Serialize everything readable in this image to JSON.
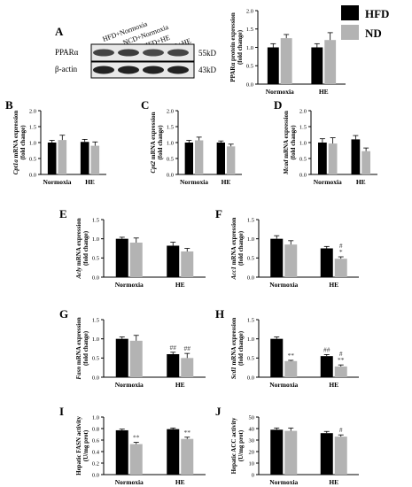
{
  "legend": {
    "items": [
      {
        "label": "HFD",
        "color": "#000000"
      },
      {
        "label": "ND",
        "color": "#b3b3b3"
      }
    ]
  },
  "blot": {
    "panel": "A",
    "lanes": [
      "HFD+Normoxia",
      "NCD+Normoxia",
      "HFD+HE",
      "NCD+HE"
    ],
    "rows": [
      {
        "label": "PPARα",
        "size": "55kD"
      },
      {
        "label": "β-actin",
        "size": "43kD"
      }
    ]
  },
  "chart_data": [
    {
      "id": "A",
      "type": "bar",
      "panel": "",
      "ylabel": "PPARα protein expression",
      "yunit": "(fold change)",
      "categories": [
        "Normoxia",
        "HE"
      ],
      "ylim": [
        0,
        2
      ],
      "yticks": [
        0,
        0.5,
        1,
        1.5,
        2
      ],
      "tick_decimals": 1,
      "series": [
        {
          "name": "HFD",
          "values": [
            1.0,
            1.0
          ],
          "err": [
            0.1,
            0.1
          ]
        },
        {
          "name": "ND",
          "values": [
            1.25,
            1.2
          ],
          "err": [
            0.1,
            0.2
          ]
        }
      ],
      "annotations": []
    },
    {
      "id": "B",
      "type": "bar",
      "panel": "B",
      "ylabel": "mRNA expression",
      "gene": "Cpt1a",
      "yunit": "(fold change)",
      "categories": [
        "Normoxia",
        "HE"
      ],
      "ylim": [
        0,
        2
      ],
      "yticks": [
        0,
        0.5,
        1,
        1.5,
        2
      ],
      "tick_decimals": 1,
      "series": [
        {
          "name": "HFD",
          "values": [
            1.0,
            1.02
          ],
          "err": [
            0.07,
            0.08
          ]
        },
        {
          "name": "ND",
          "values": [
            1.08,
            0.9
          ],
          "err": [
            0.15,
            0.12
          ]
        }
      ],
      "annotations": []
    },
    {
      "id": "C",
      "type": "bar",
      "panel": "C",
      "ylabel": "mRNA expression",
      "gene": "Cpt2",
      "yunit": "(fold change)",
      "categories": [
        "Normoxia",
        "HE"
      ],
      "ylim": [
        0,
        2
      ],
      "yticks": [
        0,
        0.5,
        1,
        1.5,
        2
      ],
      "tick_decimals": 1,
      "series": [
        {
          "name": "HFD",
          "values": [
            1.0,
            1.0
          ],
          "err": [
            0.07,
            0.05
          ]
        },
        {
          "name": "ND",
          "values": [
            1.07,
            0.88
          ],
          "err": [
            0.1,
            0.07
          ]
        }
      ],
      "annotations": []
    },
    {
      "id": "D",
      "type": "bar",
      "panel": "D",
      "ylabel": "mRNA expression",
      "gene": "Mcad",
      "yunit": "(fold change)",
      "categories": [
        "Normoxia",
        "HE"
      ],
      "ylim": [
        0,
        2
      ],
      "yticks": [
        0,
        0.5,
        1,
        1.5,
        2
      ],
      "tick_decimals": 1,
      "series": [
        {
          "name": "HFD",
          "values": [
            1.0,
            1.1
          ],
          "err": [
            0.12,
            0.12
          ]
        },
        {
          "name": "ND",
          "values": [
            0.97,
            0.73
          ],
          "err": [
            0.18,
            0.1
          ]
        }
      ],
      "annotations": []
    },
    {
      "id": "E",
      "type": "bar",
      "panel": "E",
      "ylabel": "mRNA expression",
      "gene": "Acly",
      "yunit": "(fold change)",
      "categories": [
        "Normoxia",
        "HE"
      ],
      "ylim": [
        0,
        1.5
      ],
      "yticks": [
        0,
        0.5,
        1,
        1.5
      ],
      "tick_decimals": 1,
      "series": [
        {
          "name": "HFD",
          "values": [
            1.0,
            0.82
          ],
          "err": [
            0.04,
            0.09
          ]
        },
        {
          "name": "ND",
          "values": [
            0.9,
            0.67
          ],
          "err": [
            0.12,
            0.08
          ]
        }
      ],
      "annotations": []
    },
    {
      "id": "F",
      "type": "bar",
      "panel": "F",
      "ylabel": "mRNA expression",
      "gene": "Acc1",
      "yunit": "(fold change)",
      "categories": [
        "Normoxia",
        "HE"
      ],
      "ylim": [
        0,
        1.5
      ],
      "yticks": [
        0,
        0.5,
        1,
        1.5
      ],
      "tick_decimals": 1,
      "series": [
        {
          "name": "HFD",
          "values": [
            1.0,
            0.75
          ],
          "err": [
            0.08,
            0.05
          ]
        },
        {
          "name": "ND",
          "values": [
            0.85,
            0.48
          ],
          "err": [
            0.1,
            0.05
          ]
        }
      ],
      "annotations": [
        {
          "series": 1,
          "index": 1,
          "lines": [
            "#",
            "*"
          ]
        }
      ]
    },
    {
      "id": "G",
      "type": "bar",
      "panel": "G",
      "ylabel": "mRNA expression",
      "gene": "Fasn",
      "yunit": "(fold change)",
      "categories": [
        "Normoxia",
        "HE"
      ],
      "ylim": [
        0,
        1.5
      ],
      "yticks": [
        0,
        0.5,
        1,
        1.5
      ],
      "tick_decimals": 1,
      "series": [
        {
          "name": "HFD",
          "values": [
            1.0,
            0.6
          ],
          "err": [
            0.05,
            0.05
          ]
        },
        {
          "name": "ND",
          "values": [
            0.95,
            0.5
          ],
          "err": [
            0.14,
            0.12
          ]
        }
      ],
      "annotations": [
        {
          "series": 0,
          "index": 1,
          "lines": [
            "##"
          ]
        },
        {
          "series": 1,
          "index": 1,
          "lines": [
            "##"
          ]
        }
      ]
    },
    {
      "id": "H",
      "type": "bar",
      "panel": "H",
      "ylabel": "mRNA expression",
      "gene": "Scd1",
      "yunit": "(fold change)",
      "categories": [
        "Normoxia",
        "HE"
      ],
      "ylim": [
        0,
        1.5
      ],
      "yticks": [
        0,
        0.5,
        1,
        1.5
      ],
      "tick_decimals": 1,
      "series": [
        {
          "name": "HFD",
          "values": [
            1.0,
            0.55
          ],
          "err": [
            0.05,
            0.04
          ]
        },
        {
          "name": "ND",
          "values": [
            0.42,
            0.28
          ],
          "err": [
            0.02,
            0.04
          ]
        }
      ],
      "annotations": [
        {
          "series": 1,
          "index": 0,
          "lines": [
            "**"
          ]
        },
        {
          "series": 0,
          "index": 1,
          "lines": [
            "##"
          ]
        },
        {
          "series": 1,
          "index": 1,
          "lines": [
            "#",
            "**"
          ]
        }
      ]
    },
    {
      "id": "I",
      "type": "bar",
      "panel": "I",
      "ylabel": "Hepatic FASN activity",
      "yunit": "(U/mg prot)",
      "categories": [
        "Normoxia",
        "HE"
      ],
      "ylim": [
        0,
        1.0
      ],
      "yticks": [
        0,
        0.2,
        0.4,
        0.6,
        0.8,
        1.0
      ],
      "tick_decimals": 1,
      "series": [
        {
          "name": "HFD",
          "values": [
            0.77,
            0.79
          ],
          "err": [
            0.02,
            0.02
          ]
        },
        {
          "name": "ND",
          "values": [
            0.53,
            0.62
          ],
          "err": [
            0.03,
            0.03
          ]
        }
      ],
      "annotations": [
        {
          "series": 1,
          "index": 0,
          "lines": [
            "**"
          ]
        },
        {
          "series": 1,
          "index": 1,
          "lines": [
            "**"
          ]
        }
      ]
    },
    {
      "id": "J",
      "type": "bar",
      "panel": "J",
      "ylabel": "Hepatic ACC activity",
      "yunit": "(U/mg prot)",
      "categories": [
        "Normoxia",
        "HE"
      ],
      "ylim": [
        0,
        50
      ],
      "yticks": [
        0,
        10,
        20,
        30,
        40,
        50
      ],
      "tick_decimals": 0,
      "series": [
        {
          "name": "HFD",
          "values": [
            39,
            36
          ],
          "err": [
            1.5,
            1.5
          ]
        },
        {
          "name": "ND",
          "values": [
            38,
            33
          ],
          "err": [
            2.5,
            1.5
          ]
        }
      ],
      "annotations": [
        {
          "series": 1,
          "index": 1,
          "lines": [
            "#"
          ]
        }
      ]
    }
  ]
}
